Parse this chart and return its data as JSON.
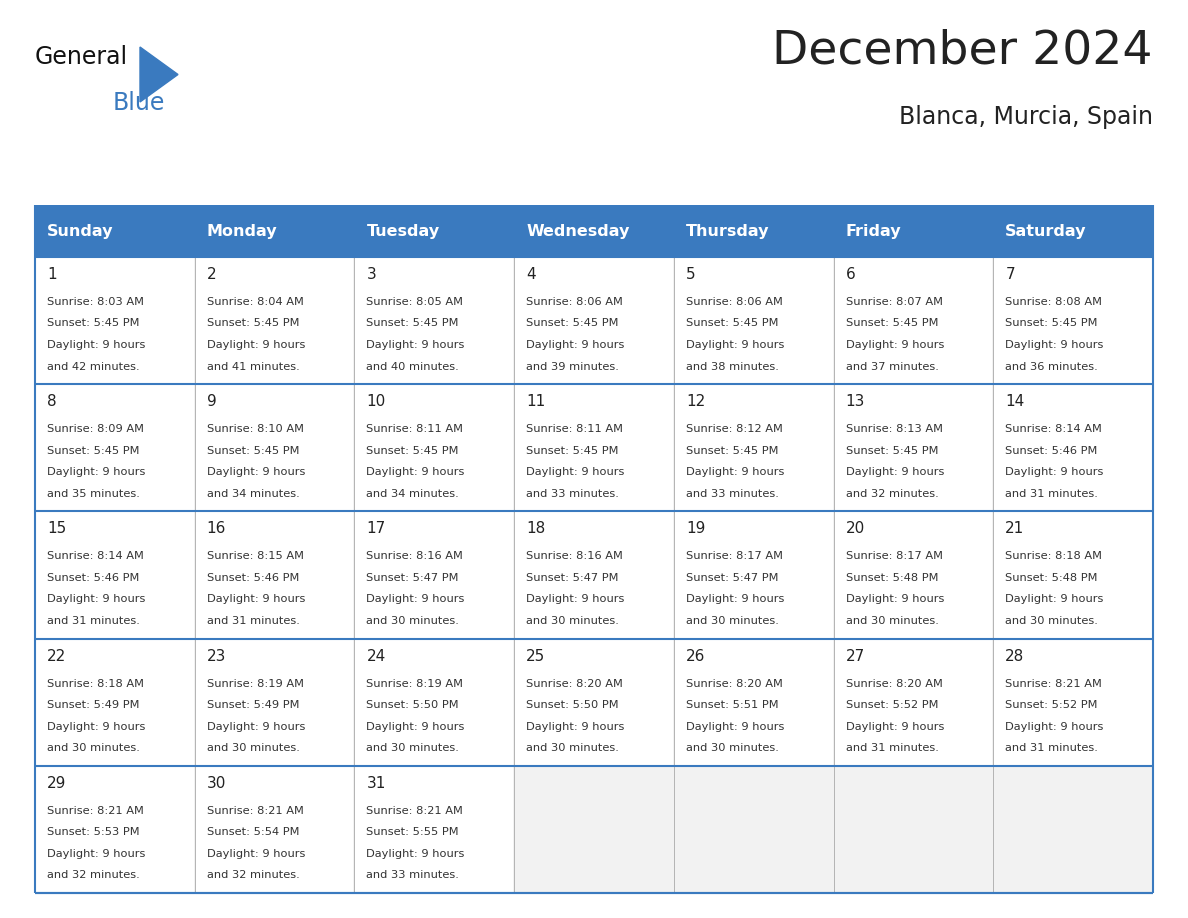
{
  "title": "December 2024",
  "subtitle": "Blanca, Murcia, Spain",
  "days_of_week": [
    "Sunday",
    "Monday",
    "Tuesday",
    "Wednesday",
    "Thursday",
    "Friday",
    "Saturday"
  ],
  "header_bg": "#3a7abf",
  "header_text": "#FFFFFF",
  "bg_color": "#FFFFFF",
  "cell_bg": "#f2f2f2",
  "line_color": "#3a7abf",
  "sep_color": "#aaaaaa",
  "day_num_color": "#222222",
  "text_color": "#333333",
  "logo_general_color": "#111111",
  "logo_blue_color": "#3a7abf",
  "weeks": [
    [
      {
        "day": 1,
        "sunrise": "8:03 AM",
        "sunset": "5:45 PM",
        "dl1": "Daylight: 9 hours",
        "dl2": "and 42 minutes."
      },
      {
        "day": 2,
        "sunrise": "8:04 AM",
        "sunset": "5:45 PM",
        "dl1": "Daylight: 9 hours",
        "dl2": "and 41 minutes."
      },
      {
        "day": 3,
        "sunrise": "8:05 AM",
        "sunset": "5:45 PM",
        "dl1": "Daylight: 9 hours",
        "dl2": "and 40 minutes."
      },
      {
        "day": 4,
        "sunrise": "8:06 AM",
        "sunset": "5:45 PM",
        "dl1": "Daylight: 9 hours",
        "dl2": "and 39 minutes."
      },
      {
        "day": 5,
        "sunrise": "8:06 AM",
        "sunset": "5:45 PM",
        "dl1": "Daylight: 9 hours",
        "dl2": "and 38 minutes."
      },
      {
        "day": 6,
        "sunrise": "8:07 AM",
        "sunset": "5:45 PM",
        "dl1": "Daylight: 9 hours",
        "dl2": "and 37 minutes."
      },
      {
        "day": 7,
        "sunrise": "8:08 AM",
        "sunset": "5:45 PM",
        "dl1": "Daylight: 9 hours",
        "dl2": "and 36 minutes."
      }
    ],
    [
      {
        "day": 8,
        "sunrise": "8:09 AM",
        "sunset": "5:45 PM",
        "dl1": "Daylight: 9 hours",
        "dl2": "and 35 minutes."
      },
      {
        "day": 9,
        "sunrise": "8:10 AM",
        "sunset": "5:45 PM",
        "dl1": "Daylight: 9 hours",
        "dl2": "and 34 minutes."
      },
      {
        "day": 10,
        "sunrise": "8:11 AM",
        "sunset": "5:45 PM",
        "dl1": "Daylight: 9 hours",
        "dl2": "and 34 minutes."
      },
      {
        "day": 11,
        "sunrise": "8:11 AM",
        "sunset": "5:45 PM",
        "dl1": "Daylight: 9 hours",
        "dl2": "and 33 minutes."
      },
      {
        "day": 12,
        "sunrise": "8:12 AM",
        "sunset": "5:45 PM",
        "dl1": "Daylight: 9 hours",
        "dl2": "and 33 minutes."
      },
      {
        "day": 13,
        "sunrise": "8:13 AM",
        "sunset": "5:45 PM",
        "dl1": "Daylight: 9 hours",
        "dl2": "and 32 minutes."
      },
      {
        "day": 14,
        "sunrise": "8:14 AM",
        "sunset": "5:46 PM",
        "dl1": "Daylight: 9 hours",
        "dl2": "and 31 minutes."
      }
    ],
    [
      {
        "day": 15,
        "sunrise": "8:14 AM",
        "sunset": "5:46 PM",
        "dl1": "Daylight: 9 hours",
        "dl2": "and 31 minutes."
      },
      {
        "day": 16,
        "sunrise": "8:15 AM",
        "sunset": "5:46 PM",
        "dl1": "Daylight: 9 hours",
        "dl2": "and 31 minutes."
      },
      {
        "day": 17,
        "sunrise": "8:16 AM",
        "sunset": "5:47 PM",
        "dl1": "Daylight: 9 hours",
        "dl2": "and 30 minutes."
      },
      {
        "day": 18,
        "sunrise": "8:16 AM",
        "sunset": "5:47 PM",
        "dl1": "Daylight: 9 hours",
        "dl2": "and 30 minutes."
      },
      {
        "day": 19,
        "sunrise": "8:17 AM",
        "sunset": "5:47 PM",
        "dl1": "Daylight: 9 hours",
        "dl2": "and 30 minutes."
      },
      {
        "day": 20,
        "sunrise": "8:17 AM",
        "sunset": "5:48 PM",
        "dl1": "Daylight: 9 hours",
        "dl2": "and 30 minutes."
      },
      {
        "day": 21,
        "sunrise": "8:18 AM",
        "sunset": "5:48 PM",
        "dl1": "Daylight: 9 hours",
        "dl2": "and 30 minutes."
      }
    ],
    [
      {
        "day": 22,
        "sunrise": "8:18 AM",
        "sunset": "5:49 PM",
        "dl1": "Daylight: 9 hours",
        "dl2": "and 30 minutes."
      },
      {
        "day": 23,
        "sunrise": "8:19 AM",
        "sunset": "5:49 PM",
        "dl1": "Daylight: 9 hours",
        "dl2": "and 30 minutes."
      },
      {
        "day": 24,
        "sunrise": "8:19 AM",
        "sunset": "5:50 PM",
        "dl1": "Daylight: 9 hours",
        "dl2": "and 30 minutes."
      },
      {
        "day": 25,
        "sunrise": "8:20 AM",
        "sunset": "5:50 PM",
        "dl1": "Daylight: 9 hours",
        "dl2": "and 30 minutes."
      },
      {
        "day": 26,
        "sunrise": "8:20 AM",
        "sunset": "5:51 PM",
        "dl1": "Daylight: 9 hours",
        "dl2": "and 30 minutes."
      },
      {
        "day": 27,
        "sunrise": "8:20 AM",
        "sunset": "5:52 PM",
        "dl1": "Daylight: 9 hours",
        "dl2": "and 31 minutes."
      },
      {
        "day": 28,
        "sunrise": "8:21 AM",
        "sunset": "5:52 PM",
        "dl1": "Daylight: 9 hours",
        "dl2": "and 31 minutes."
      }
    ],
    [
      {
        "day": 29,
        "sunrise": "8:21 AM",
        "sunset": "5:53 PM",
        "dl1": "Daylight: 9 hours",
        "dl2": "and 32 minutes."
      },
      {
        "day": 30,
        "sunrise": "8:21 AM",
        "sunset": "5:54 PM",
        "dl1": "Daylight: 9 hours",
        "dl2": "and 32 minutes."
      },
      {
        "day": 31,
        "sunrise": "8:21 AM",
        "sunset": "5:55 PM",
        "dl1": "Daylight: 9 hours",
        "dl2": "and 33 minutes."
      },
      null,
      null,
      null,
      null
    ]
  ]
}
